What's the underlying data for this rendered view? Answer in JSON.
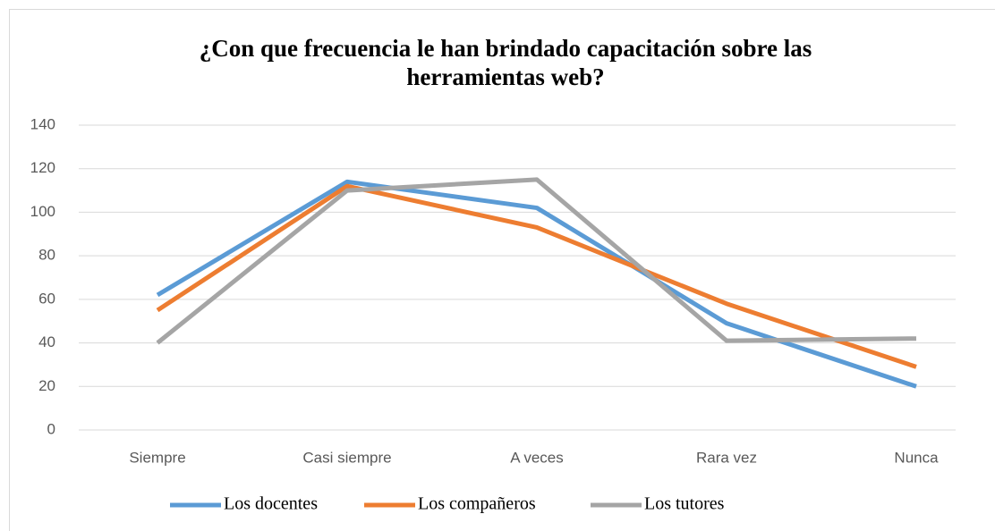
{
  "chart_data": {
    "type": "line",
    "title": "¿Con que frecuencia le han brindado capacitación sobre las herramientas web?",
    "categories": [
      "Siempre",
      "Casi siempre",
      "A veces",
      "Rara vez",
      "Nunca"
    ],
    "series": [
      {
        "name": "Los docentes",
        "color": "#5b9bd5",
        "values": [
          62,
          114,
          102,
          49,
          20
        ]
      },
      {
        "name": "Los compañeros",
        "color": "#ed7d31",
        "values": [
          55,
          112,
          93,
          58,
          29
        ]
      },
      {
        "name": "Los tutores",
        "color": "#a5a5a5",
        "values": [
          40,
          110,
          115,
          41,
          42
        ]
      }
    ],
    "ylim": [
      0,
      140
    ],
    "yticks": [
      0,
      20,
      40,
      60,
      80,
      100,
      120,
      140
    ],
    "grid": true,
    "legend": "bottom"
  }
}
